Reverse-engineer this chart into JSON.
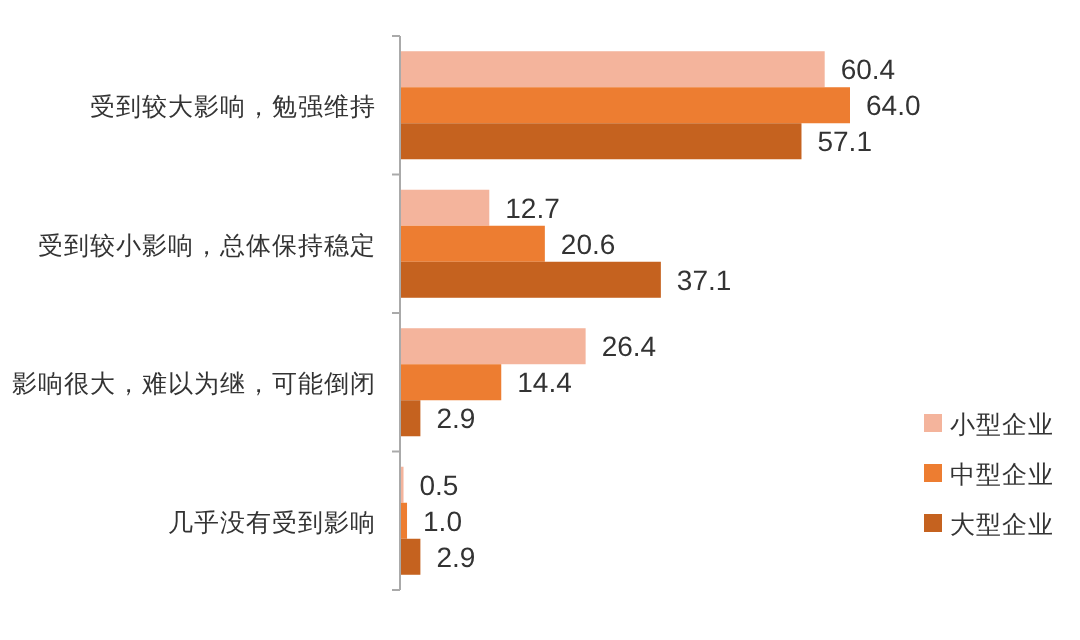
{
  "chart_data": {
    "type": "bar",
    "orientation": "horizontal",
    "categories": [
      "受到较大影响，勉强维持",
      "受到较小影响，总体保持稳定",
      "影响很大，难以为继，可能倒闭",
      "几乎没有受到影响"
    ],
    "series": [
      {
        "name": "小型企业",
        "color": "#f4b49c",
        "values": [
          60.4,
          12.7,
          26.4,
          0.5
        ],
        "value_labels": [
          "60.4",
          "12.7",
          "26.4",
          "0.5"
        ]
      },
      {
        "name": "中型企业",
        "color": "#ed7d31",
        "values": [
          64,
          20.6,
          14.4,
          1
        ],
        "value_labels": [
          "64.0",
          "20.6",
          "14.4",
          "1.0"
        ]
      },
      {
        "name": "大型企业",
        "color": "#c5621f",
        "values": [
          57.1,
          37.1,
          2.9,
          2.9
        ],
        "value_labels": [
          "57.1",
          "37.1",
          "2.9",
          "2.9"
        ]
      }
    ],
    "tick_labels": "y",
    "legend": "bottom right"
  }
}
